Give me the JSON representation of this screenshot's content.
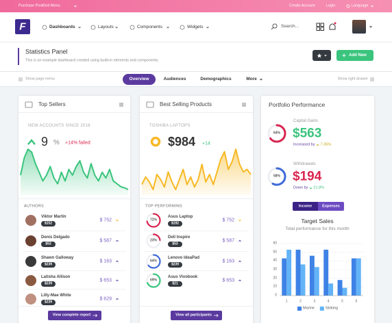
{
  "top_bar": {
    "left": [
      "Purchase Pool",
      "Grid Menu"
    ],
    "right": [
      "Create Account",
      "Login",
      "Language"
    ]
  },
  "header": {
    "logo": "F",
    "nav": [
      "Dashboards",
      "Layouts",
      "Components",
      "Widgets"
    ],
    "search": "Search..."
  },
  "page_title": {
    "title": "Statistics Panel",
    "subtitle": "This is an example dashboard created using build-in elements and components.",
    "button": "Add New"
  },
  "tabs": {
    "left": "Show page menu",
    "items": [
      "Overview",
      "Audiences",
      "Demographics",
      "More"
    ],
    "active": 0,
    "right": "Show right drawer"
  },
  "top_sellers": {
    "title": "Top Sellers",
    "label": "NEW ACCOUNTS SINCE 2018",
    "value": "9",
    "unit": "%",
    "change": "+14% failed",
    "color": "#3ac47d",
    "sparkline": [
      40,
      70,
      85,
      80,
      60,
      45,
      30,
      40,
      55,
      35,
      25,
      45,
      30,
      50,
      40,
      55,
      65,
      45,
      35,
      60,
      40,
      30,
      45,
      35,
      50,
      30,
      25,
      20,
      18,
      15
    ],
    "list_title": "AUTHORS",
    "rows": [
      {
        "name": "Viktor Martin",
        "badge": "$152",
        "total": "$ 752",
        "trend": "down"
      },
      {
        "name": "Denis Delgado",
        "badge": "$53",
        "total": "$ 587",
        "trend": "up"
      },
      {
        "name": "Shawn Galloway",
        "badge": "$239",
        "total": "$ 163",
        "trend": "up"
      },
      {
        "name": "Latisha Allison",
        "badge": "$239",
        "total": "$ 653",
        "trend": "up"
      },
      {
        "name": "Lilly-Mae White",
        "badge": "$239",
        "total": "$ 629",
        "trend": "up"
      }
    ],
    "button": "View complete report"
  },
  "best_selling": {
    "title": "Best Selling Products",
    "label": "TOSHIBA LAPTOPS",
    "value": "$984",
    "change": "+14",
    "color": "#f7b924",
    "sparkline": [
      30,
      45,
      35,
      20,
      50,
      40,
      25,
      55,
      35,
      20,
      40,
      60,
      30,
      45,
      25,
      40,
      70,
      35,
      50,
      30,
      55,
      80,
      95,
      60,
      75,
      100,
      70,
      55,
      60,
      50
    ],
    "list_title": "TOP PERFORMING",
    "rows": [
      {
        "name": "Asus Laptop",
        "badge": "$192",
        "progress": 72,
        "progress_label": "72%",
        "total": "$ 752",
        "trend": "down",
        "ring_color": "#d92550"
      },
      {
        "name": "Dell Inspire",
        "badge": "$53",
        "progress": 23,
        "progress_label": "23%",
        "total": "$ 587",
        "trend": "up",
        "ring_color": "#d92550"
      },
      {
        "name": "Lenovo IdeaPad",
        "badge": "$239",
        "progress": 64,
        "progress_label": "64%",
        "total": "$ 163",
        "trend": "up",
        "ring_color": "#3f6ad8"
      },
      {
        "name": "Asus Vivobook",
        "badge": "$21",
        "progress": 69,
        "progress_label": "69%",
        "total": "$ 653",
        "trend": "up",
        "ring_color": "#3ac47d"
      }
    ],
    "button": "View all participants"
  },
  "portfolio": {
    "title": "Portfolio Performance",
    "stats": [
      {
        "label": "Capital Gains",
        "progress": 64,
        "progress_label": "64%",
        "value": "$563",
        "note": "Increased by",
        "change": "7.35%",
        "trend": "up",
        "ring_color": "#d92550",
        "value_color": "#3ac47d",
        "change_color": "#c9a70e"
      },
      {
        "label": "Withdrawals",
        "progress": 58,
        "progress_label": "58%",
        "value": "$194",
        "note": "Down by",
        "change": "21.8%",
        "trend": "down",
        "ring_color": "#3f6ad8",
        "value_color": "#d92550",
        "change_color": "#3ac47d"
      }
    ],
    "toggle": [
      "Income",
      "Expenses"
    ],
    "toggle_active": 0
  },
  "chart_data": {
    "type": "bar",
    "title": "Target Sales",
    "subtitle": "Total performance for this month",
    "categories": [
      "1",
      "2",
      "3",
      "4",
      "5",
      "6"
    ],
    "series": [
      {
        "name": "Marine",
        "color": "#3f82e6",
        "values": [
          43,
          53,
          46,
          53,
          18,
          43
        ]
      },
      {
        "name": "Striking",
        "color": "#63b3f7",
        "values": [
          53,
          36,
          33,
          14,
          9,
          43
        ]
      }
    ],
    "ylim": [
      0,
      60
    ],
    "yticks": [
      0,
      10,
      20,
      30,
      40,
      50,
      60
    ],
    "grid": true
  }
}
